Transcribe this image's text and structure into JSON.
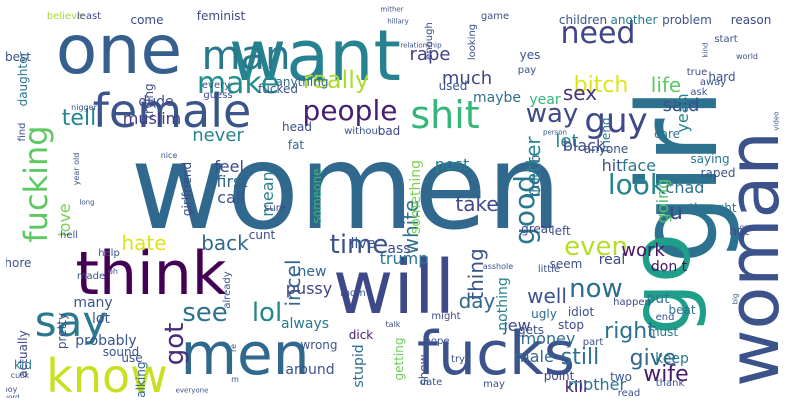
{
  "words": [
    {
      "text": "women",
      "color": "#30688e",
      "vertical": false
    },
    {
      "text": "girl",
      "color": "#2c728e",
      "vertical": true
    },
    {
      "text": "woman",
      "color": "#3b528b",
      "vertical": true
    },
    {
      "text": "want",
      "color": "#26828e",
      "vertical": false
    },
    {
      "text": "think",
      "color": "#440154",
      "vertical": false
    },
    {
      "text": "will",
      "color": "#3e4989",
      "vertical": false
    },
    {
      "text": "one",
      "color": "#355f8d",
      "vertical": false
    },
    {
      "text": "go",
      "color": "#1f9e89",
      "vertical": true
    },
    {
      "text": "men",
      "color": "#31688e",
      "vertical": false
    },
    {
      "text": "fucks",
      "color": "#3b528b",
      "vertical": false
    },
    {
      "text": "female",
      "color": "#3a548c",
      "vertical": false
    },
    {
      "text": "know",
      "color": "#c8e020",
      "vertical": false
    },
    {
      "text": "man",
      "color": "#2a788e",
      "vertical": false
    },
    {
      "text": "shit",
      "color": "#35b779",
      "vertical": false
    },
    {
      "text": "say",
      "color": "#2a788e",
      "vertical": false
    },
    {
      "text": "people",
      "color": "#481f70",
      "vertical": false
    },
    {
      "text": "guy",
      "color": "#3f4889",
      "vertical": false
    },
    {
      "text": "fucking",
      "color": "#5ec962",
      "vertical": true
    },
    {
      "text": "look",
      "color": "#25858e",
      "vertical": false
    },
    {
      "text": "time",
      "color": "#3b528b",
      "vertical": false
    },
    {
      "text": "even",
      "color": "#b5de2b",
      "vertical": false
    },
    {
      "text": "need",
      "color": "#404688",
      "vertical": false
    },
    {
      "text": "make",
      "color": "#218e8d",
      "vertical": false
    },
    {
      "text": "really",
      "color": "#addc30",
      "vertical": false
    },
    {
      "text": "way",
      "color": "#3e4a89",
      "vertical": false
    },
    {
      "text": "good",
      "color": "#2a778e",
      "vertical": true
    },
    {
      "text": "now",
      "color": "#2e6e8e",
      "vertical": false
    },
    {
      "text": "lol",
      "color": "#23888e",
      "vertical": false
    },
    {
      "text": "see",
      "color": "#2c728e",
      "vertical": false
    },
    {
      "text": "right",
      "color": "#2d708e",
      "vertical": false
    },
    {
      "text": "bitch",
      "color": "#dde318",
      "vertical": false
    },
    {
      "text": "sex",
      "color": "#46327e",
      "vertical": false
    },
    {
      "text": "life",
      "color": "#5ec962",
      "vertical": false
    },
    {
      "text": "wife",
      "color": "#481b6d",
      "vertical": false
    },
    {
      "text": "give",
      "color": "#31688e",
      "vertical": false
    },
    {
      "text": "still",
      "color": "#2d718e",
      "vertical": false
    },
    {
      "text": "got",
      "color": "#472c7a",
      "vertical": true
    },
    {
      "text": "tell",
      "color": "#24868e",
      "vertical": false
    },
    {
      "text": "take",
      "color": "#3e4989",
      "vertical": false
    },
    {
      "text": "back",
      "color": "#31688e",
      "vertical": false
    },
    {
      "text": "hate",
      "color": "#dde318",
      "vertical": false
    },
    {
      "text": "incel",
      "color": "#31688e",
      "vertical": true
    },
    {
      "text": "white",
      "color": "#2c738e",
      "vertical": true
    },
    {
      "text": "thing",
      "color": "#3a548c",
      "vertical": true
    },
    {
      "text": "better",
      "color": "#25848e",
      "vertical": true
    },
    {
      "text": "rape",
      "color": "#433e85",
      "vertical": false
    },
    {
      "text": "much",
      "color": "#3f4788",
      "vertical": false
    },
    {
      "text": "well",
      "color": "#3b528b",
      "vertical": false
    },
    {
      "text": "work",
      "color": "#481467",
      "vertical": false
    },
    {
      "text": "day",
      "color": "#31688e",
      "vertical": false
    },
    {
      "text": "never",
      "color": "#25838e",
      "vertical": false
    },
    {
      "text": "said",
      "color": "#3b528b",
      "vertical": false
    },
    {
      "text": "yeah",
      "color": "#25838e",
      "vertical": true
    },
    {
      "text": "going",
      "color": "#52c569",
      "vertical": true
    },
    {
      "text": "mean",
      "color": "#26828e",
      "vertical": true
    },
    {
      "text": "feel",
      "color": "#3e4a89",
      "vertical": false
    },
    {
      "text": "first",
      "color": "#33638d",
      "vertical": false
    },
    {
      "text": "call",
      "color": "#3b528b",
      "vertical": false
    },
    {
      "text": "chad",
      "color": "#2d708e",
      "vertical": false
    },
    {
      "text": "love",
      "color": "#7ad151",
      "vertical": true
    },
    {
      "text": "jew",
      "color": "#3e4a89",
      "vertical": false
    },
    {
      "text": "kill",
      "color": "#471164",
      "vertical": false
    },
    {
      "text": "hit",
      "color": "#3a548c",
      "vertical": false
    },
    {
      "text": "face",
      "color": "#2a788e",
      "vertical": false
    },
    {
      "text": "muslim",
      "color": "#443983",
      "vertical": false
    },
    {
      "text": "post",
      "color": "#26828e",
      "vertical": false
    },
    {
      "text": "u",
      "color": "#3e4a89",
      "vertical": false
    },
    {
      "text": "let",
      "color": "#25858e",
      "vertical": false
    },
    {
      "text": "black",
      "color": "#3f4889",
      "vertical": false
    },
    {
      "text": "pussy",
      "color": "#414487",
      "vertical": false
    },
    {
      "text": "trump",
      "color": "#2c728e",
      "vertical": false
    },
    {
      "text": "live",
      "color": "#39568c",
      "vertical": false
    },
    {
      "text": "money",
      "color": "#2e6e8e",
      "vertical": false
    },
    {
      "text": "male",
      "color": "#31688e",
      "vertical": false
    },
    {
      "text": "mother",
      "color": "#2c738e",
      "vertical": false
    },
    {
      "text": "stupid",
      "color": "#2e6d8e",
      "vertical": true
    },
    {
      "text": "nothing",
      "color": "#26828e",
      "vertical": true
    },
    {
      "text": "something",
      "color": "#7ad151",
      "vertical": true
    },
    {
      "text": "always",
      "color": "#2a788e",
      "vertical": false
    },
    {
      "text": "around",
      "color": "#3b528b",
      "vertical": false
    },
    {
      "text": "keep",
      "color": "#2a788e",
      "vertical": false
    },
    {
      "text": "put",
      "color": "#2a788e",
      "vertical": false
    },
    {
      "text": "year",
      "color": "#35b779",
      "vertical": false
    },
    {
      "text": "lot",
      "color": "#3b528b",
      "vertical": false
    },
    {
      "text": "many",
      "color": "#39568c",
      "vertical": false
    },
    {
      "text": "new",
      "color": "#31688e",
      "vertical": false
    },
    {
      "text": "real",
      "color": "#3e4a89",
      "vertical": false
    },
    {
      "text": "don t",
      "color": "#471063",
      "vertical": false
    },
    {
      "text": "dude",
      "color": "#3e4a89",
      "vertical": false
    },
    {
      "text": "maybe",
      "color": "#2d708e",
      "vertical": false
    },
    {
      "text": "ass",
      "color": "#3e4a89",
      "vertical": false
    },
    {
      "text": "probably",
      "color": "#3a548c",
      "vertical": false
    },
    {
      "text": "kid",
      "color": "#29798e",
      "vertical": false
    },
    {
      "text": "stop",
      "color": "#3f4788",
      "vertical": false
    },
    {
      "text": "wrong",
      "color": "#3b528b",
      "vertical": false
    },
    {
      "text": "dick",
      "color": "#481b6d",
      "vertical": false
    },
    {
      "text": "getting",
      "color": "#6ccd5a",
      "vertical": true
    },
    {
      "text": "show",
      "color": "#3d4d8a",
      "vertical": true
    },
    {
      "text": "ugly",
      "color": "#31688e",
      "vertical": false
    },
    {
      "text": "gets",
      "color": "#3b528b",
      "vertical": false
    },
    {
      "text": "point",
      "color": "#414487",
      "vertical": false
    },
    {
      "text": "beat",
      "color": "#2c728e",
      "vertical": false
    },
    {
      "text": "sound",
      "color": "#3b528b",
      "vertical": false
    },
    {
      "text": "talking",
      "color": "#31688e",
      "vertical": true
    },
    {
      "text": "use",
      "color": "#3b528b",
      "vertical": false
    },
    {
      "text": "must",
      "color": "#2a788e",
      "vertical": false
    },
    {
      "text": "two",
      "color": "#39568c",
      "vertical": false
    },
    {
      "text": "idiot",
      "color": "#3b528b",
      "vertical": false
    },
    {
      "text": "someone",
      "color": "#35b779",
      "vertical": true
    },
    {
      "text": "come",
      "color": "#3e4a89",
      "vertical": false
    },
    {
      "text": "children",
      "color": "#3b528b",
      "vertical": false
    },
    {
      "text": "another",
      "color": "#29798e",
      "vertical": false
    },
    {
      "text": "problem",
      "color": "#3b528b",
      "vertical": false
    },
    {
      "text": "reason",
      "color": "#3e4a89",
      "vertical": false
    },
    {
      "text": "trying",
      "color": "#3e4a89",
      "vertical": true
    },
    {
      "text": "daughter",
      "color": "#2a788e",
      "vertical": true
    },
    {
      "text": "fucked",
      "color": "#3b528b",
      "vertical": false
    },
    {
      "text": "anything",
      "color": "#31688e",
      "vertical": false
    },
    {
      "text": "bad",
      "color": "#3e4a89",
      "vertical": false
    },
    {
      "text": "used",
      "color": "#3b528b",
      "vertical": false
    },
    {
      "text": "friend",
      "color": "#2a788e",
      "vertical": true
    },
    {
      "text": "girlfriend",
      "color": "#3e4a89",
      "vertical": true
    },
    {
      "text": "hard",
      "color": "#3b528b",
      "vertical": false
    },
    {
      "text": "saying",
      "color": "#2a788e",
      "vertical": false
    },
    {
      "text": "raped",
      "color": "#3b528b",
      "vertical": false
    },
    {
      "text": "thought",
      "color": "#2c728e",
      "vertical": false
    },
    {
      "text": "hot",
      "color": "#3e4a89",
      "vertical": false
    },
    {
      "text": "though",
      "color": "#31688e",
      "vertical": true
    },
    {
      "text": "anyone",
      "color": "#3b528b",
      "vertical": false
    },
    {
      "text": "care",
      "color": "#2a788e",
      "vertical": false
    },
    {
      "text": "great",
      "color": "#3e4a89",
      "vertical": false
    },
    {
      "text": "seem",
      "color": "#3b528b",
      "vertical": false
    },
    {
      "text": "left",
      "color": "#3b528b",
      "vertical": false
    },
    {
      "text": "cunt",
      "color": "#3e4a89",
      "vertical": false
    },
    {
      "text": "head",
      "color": "#3b528b",
      "vertical": false
    },
    {
      "text": "fat",
      "color": "#31688e",
      "vertical": false
    },
    {
      "text": "best",
      "color": "#3b528b",
      "vertical": false
    },
    {
      "text": "feminist",
      "color": "#3e4a89",
      "vertical": false
    },
    {
      "text": "believe",
      "color": "#a2da37",
      "vertical": false
    },
    {
      "text": "least",
      "color": "#3e4a89",
      "vertical": false
    },
    {
      "text": "game",
      "color": "#3b528b",
      "vertical": false
    },
    {
      "text": "yes",
      "color": "#3b528b",
      "vertical": false
    },
    {
      "text": "enough",
      "color": "#3e4a89",
      "vertical": true
    },
    {
      "text": "looking",
      "color": "#3b528b",
      "vertical": true
    },
    {
      "text": "start",
      "color": "#3b528b",
      "vertical": false
    },
    {
      "text": "pay",
      "color": "#3b528b",
      "vertical": false
    },
    {
      "text": "true",
      "color": "#3e4a89",
      "vertical": false
    },
    {
      "text": "away",
      "color": "#3b528b",
      "vertical": false
    },
    {
      "text": "ask",
      "color": "#3b528b",
      "vertical": false
    },
    {
      "text": "every",
      "color": "#3b528b",
      "vertical": false
    },
    {
      "text": "guess",
      "color": "#3e4a89",
      "vertical": false
    },
    {
      "text": "without",
      "color": "#3b528b",
      "vertical": false
    },
    {
      "text": "sure",
      "color": "#3e4a89",
      "vertical": false
    },
    {
      "text": "help",
      "color": "#3b528b",
      "vertical": false
    },
    {
      "text": "made",
      "color": "#3b528b",
      "vertical": false
    },
    {
      "text": "already",
      "color": "#3b528b",
      "vertical": true
    },
    {
      "text": "little",
      "color": "#3b528b",
      "vertical": false
    },
    {
      "text": "happen",
      "color": "#3e4a89",
      "vertical": false
    },
    {
      "text": "might",
      "color": "#3e4a89",
      "vertical": false
    },
    {
      "text": "hope",
      "color": "#3b528b",
      "vertical": false
    },
    {
      "text": "try",
      "color": "#3b528b",
      "vertical": false
    },
    {
      "text": "mom",
      "color": "#3b528b",
      "vertical": false
    },
    {
      "text": "part",
      "color": "#3b528b",
      "vertical": false
    },
    {
      "text": "end",
      "color": "#3b528b",
      "vertical": false
    },
    {
      "text": "thank",
      "color": "#3b528b",
      "vertical": false
    },
    {
      "text": "read",
      "color": "#3b528b",
      "vertical": false
    },
    {
      "text": "may",
      "color": "#3b528b",
      "vertical": false
    },
    {
      "text": "date",
      "color": "#3b528b",
      "vertical": false
    },
    {
      "text": "actually",
      "color": "#3e4a89",
      "vertical": true
    },
    {
      "text": "pretty",
      "color": "#3b528b",
      "vertical": true
    },
    {
      "text": "whore",
      "color": "#3b528b",
      "vertical": false
    },
    {
      "text": "hell",
      "color": "#3b528b",
      "vertical": false
    },
    {
      "text": "nice",
      "color": "#3b528b",
      "vertical": false
    },
    {
      "text": "oh",
      "color": "#3b528b",
      "vertical": false
    },
    {
      "text": "talk",
      "color": "#3b528b",
      "vertical": false
    },
    {
      "text": "asshole",
      "color": "#3b528b",
      "vertical": false
    },
    {
      "text": "everyone",
      "color": "#3b528b",
      "vertical": false
    },
    {
      "text": "relationship",
      "color": "#3b528b",
      "vertical": false
    },
    {
      "text": "hillary",
      "color": "#3b528b",
      "vertical": false
    },
    {
      "text": "world",
      "color": "#3b528b",
      "vertical": false
    },
    {
      "text": "person",
      "color": "#3b528b",
      "vertical": false
    },
    {
      "text": "video",
      "color": "#3b528b",
      "vertical": true
    },
    {
      "text": "gay",
      "color": "#3b528b",
      "vertical": false
    },
    {
      "text": "big",
      "color": "#3b528b",
      "vertical": true
    },
    {
      "text": "nigger",
      "color": "#3b528b",
      "vertical": false
    },
    {
      "text": "year old",
      "color": "#3b528b",
      "vertical": true
    },
    {
      "text": "long",
      "color": "#3b528b",
      "vertical": false
    },
    {
      "text": "boy",
      "color": "#3b528b",
      "vertical": false
    },
    {
      "text": "word",
      "color": "#3b528b",
      "vertical": false
    },
    {
      "text": "cuck",
      "color": "#3b528b",
      "vertical": false
    },
    {
      "text": "m",
      "color": "#3b528b",
      "vertical": false
    },
    {
      "text": "re",
      "color": "#3b528b",
      "vertical": true
    },
    {
      "text": "find",
      "color": "#3b528b",
      "vertical": true
    },
    {
      "text": "kind",
      "color": "#3b528b",
      "vertical": true
    },
    {
      "text": "mither",
      "color": "#3b528b",
      "vertical": false
    }
  ]
}
